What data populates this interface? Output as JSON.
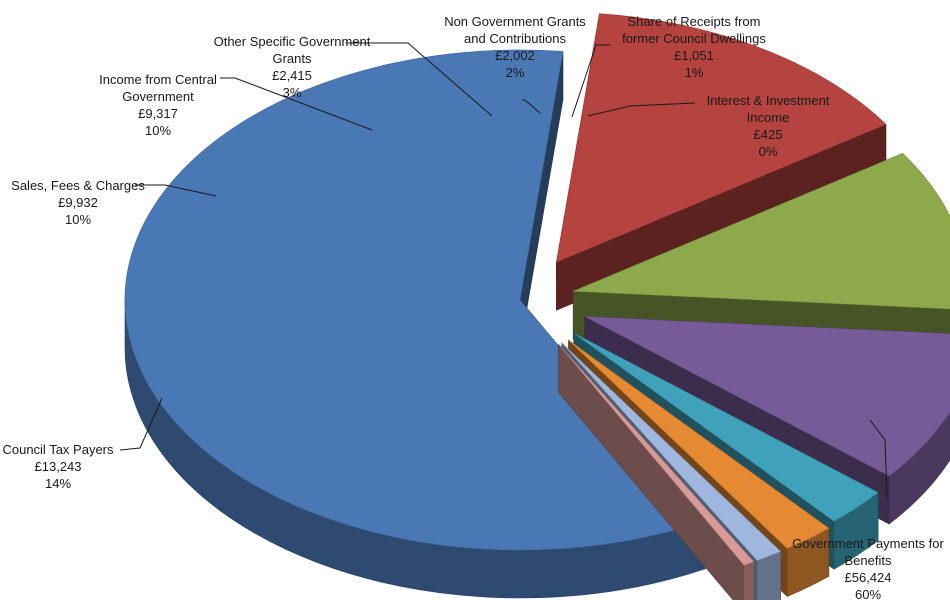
{
  "chart_data": {
    "type": "pie",
    "title": "",
    "slices": [
      {
        "label": [
          "Government Payments for",
          "Benefits"
        ],
        "value_text": "£56,424",
        "value": 56424,
        "percent_text": "60%",
        "color": "#4a78b5"
      },
      {
        "label": [
          "Council Tax Payers"
        ],
        "value_text": "£13,243",
        "value": 13243,
        "percent_text": "14%",
        "color": "#b5433f"
      },
      {
        "label": [
          "Sales, Fees & Charges"
        ],
        "value_text": "£9,932",
        "value": 9932,
        "percent_text": "10%",
        "color": "#8ea94c"
      },
      {
        "label": [
          "Income from Central",
          "Government"
        ],
        "value_text": "£9,317",
        "value": 9317,
        "percent_text": "10%",
        "color": "#775a98"
      },
      {
        "label": [
          "Other Specific Government",
          "Grants"
        ],
        "value_text": "£2,415",
        "value": 2415,
        "percent_text": "3%",
        "color": "#3fa2ba"
      },
      {
        "label": [
          "Non Government Grants",
          "and Contributions"
        ],
        "value_text": "£2,002",
        "value": 2002,
        "percent_text": "2%",
        "color": "#e58a33"
      },
      {
        "label": [
          "Share of Receipts from",
          "former Council Dwellings"
        ],
        "value_text": "£1,051",
        "value": 1051,
        "percent_text": "1%",
        "color": "#9fb7de"
      },
      {
        "label": [
          "Interest & Investment",
          "Income"
        ],
        "value_text": "£425",
        "value": 425,
        "percent_text": "0%",
        "color": "#d79a98"
      }
    ],
    "legend": "none",
    "style": "exploded 3D pie"
  }
}
